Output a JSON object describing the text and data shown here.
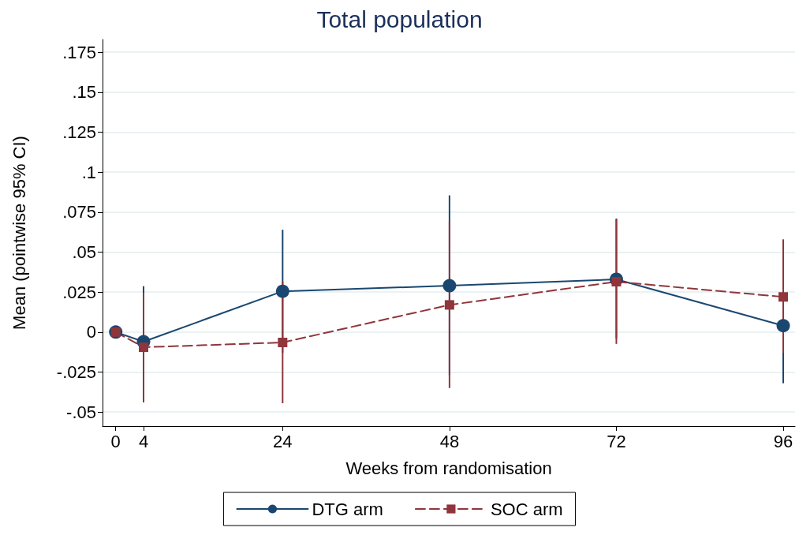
{
  "chart_data": {
    "type": "line",
    "title": "Total population",
    "xlabel": "Weeks from randomisation",
    "ylabel": "Mean (pointwise 95% CI)",
    "x": [
      0,
      4,
      24,
      48,
      72,
      96
    ],
    "series": [
      {
        "name": "DTG arm",
        "color": "#1a476f",
        "marker": "circle",
        "line_style": "solid",
        "values": [
          0,
          -0.006,
          0.0255,
          0.029,
          0.033,
          0.004
        ],
        "errors": [
          null,
          [
            -0.041,
            0.0287
          ],
          [
            -0.013,
            0.064
          ],
          [
            -0.027,
            0.0855
          ],
          [
            -0.004,
            0.071
          ],
          [
            -0.032,
            0.039
          ]
        ]
      },
      {
        "name": "SOC arm",
        "color": "#90353b",
        "marker": "square",
        "line_style": "dashed",
        "values": [
          0,
          -0.0095,
          -0.0065,
          0.017,
          0.0315,
          0.022
        ],
        "errors": [
          null,
          [
            -0.044,
            0.0247
          ],
          [
            -0.0445,
            0.0316
          ],
          [
            -0.035,
            0.069
          ],
          [
            -0.0074,
            0.0705
          ],
          [
            -0.013,
            0.058
          ]
        ]
      }
    ],
    "xlim": [
      -1.9,
      97.7
    ],
    "xticks": [
      0,
      4,
      24,
      48,
      72,
      96
    ],
    "ylim": [
      -0.0588,
      0.183
    ],
    "yticks": [
      {
        "value": -0.05,
        "label": "-.05"
      },
      {
        "value": -0.025,
        "label": "-.025"
      },
      {
        "value": 0,
        "label": "0"
      },
      {
        "value": 0.025,
        "label": ".025"
      },
      {
        "value": 0.05,
        "label": ".05"
      },
      {
        "value": 0.075,
        "label": ".075"
      },
      {
        "value": 0.1,
        "label": ".1"
      },
      {
        "value": 0.125,
        "label": ".125"
      },
      {
        "value": 0.15,
        "label": ".15"
      },
      {
        "value": 0.175,
        "label": ".175"
      }
    ],
    "grid": "y",
    "legend": "bottom"
  }
}
